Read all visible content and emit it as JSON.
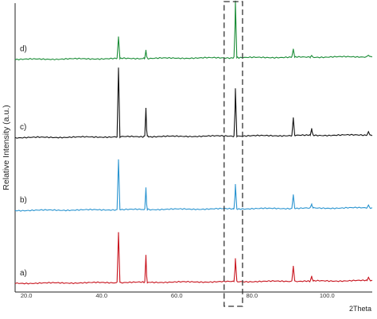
{
  "chart_data": {
    "type": "line",
    "xlabel": "2Theta",
    "ylabel": "Relative Intensity (a.u.)",
    "xlim": [
      17.0,
      112.0
    ],
    "x_ticks": [
      20.0,
      40.0,
      60.0,
      80.0,
      100.0
    ],
    "x_tick_labels": [
      "20.0",
      "40.0",
      "60.0",
      "80.0",
      "100.0"
    ],
    "y_ticks_shown": false,
    "grid": false,
    "legend": "none",
    "stacked_offset": true,
    "highlight_box": {
      "x_range": [
        72.6,
        77.5
      ],
      "style": "dashed"
    },
    "series": [
      {
        "name": "a)",
        "color": "#c8141e",
        "baseline": 0,
        "x": [
          44.5,
          51.8,
          75.6,
          91.0,
          95.9,
          111.0
        ],
        "y": [
          18.5,
          10.0,
          8.5,
          5.5,
          1.8,
          1.2
        ]
      },
      {
        "name": "b)",
        "color": "#2a94d0",
        "baseline": 27,
        "x": [
          44.5,
          51.8,
          75.6,
          91.0,
          95.9,
          111.0
        ],
        "y": [
          18.5,
          8.0,
          9.0,
          5.0,
          1.5,
          1.0
        ]
      },
      {
        "name": "c)",
        "color": "#111111",
        "baseline": 54,
        "x": [
          44.5,
          51.8,
          75.6,
          91.0,
          95.9,
          111.0
        ],
        "y": [
          25.5,
          10.5,
          17.5,
          6.5,
          2.5,
          1.2
        ]
      },
      {
        "name": "d)",
        "color": "#1a8c36",
        "baseline": 83,
        "x": [
          44.5,
          51.8,
          75.6,
          91.0,
          95.9,
          111.0
        ],
        "y": [
          8.0,
          3.0,
          21.0,
          3.0,
          0.6,
          0.5
        ]
      }
    ]
  }
}
